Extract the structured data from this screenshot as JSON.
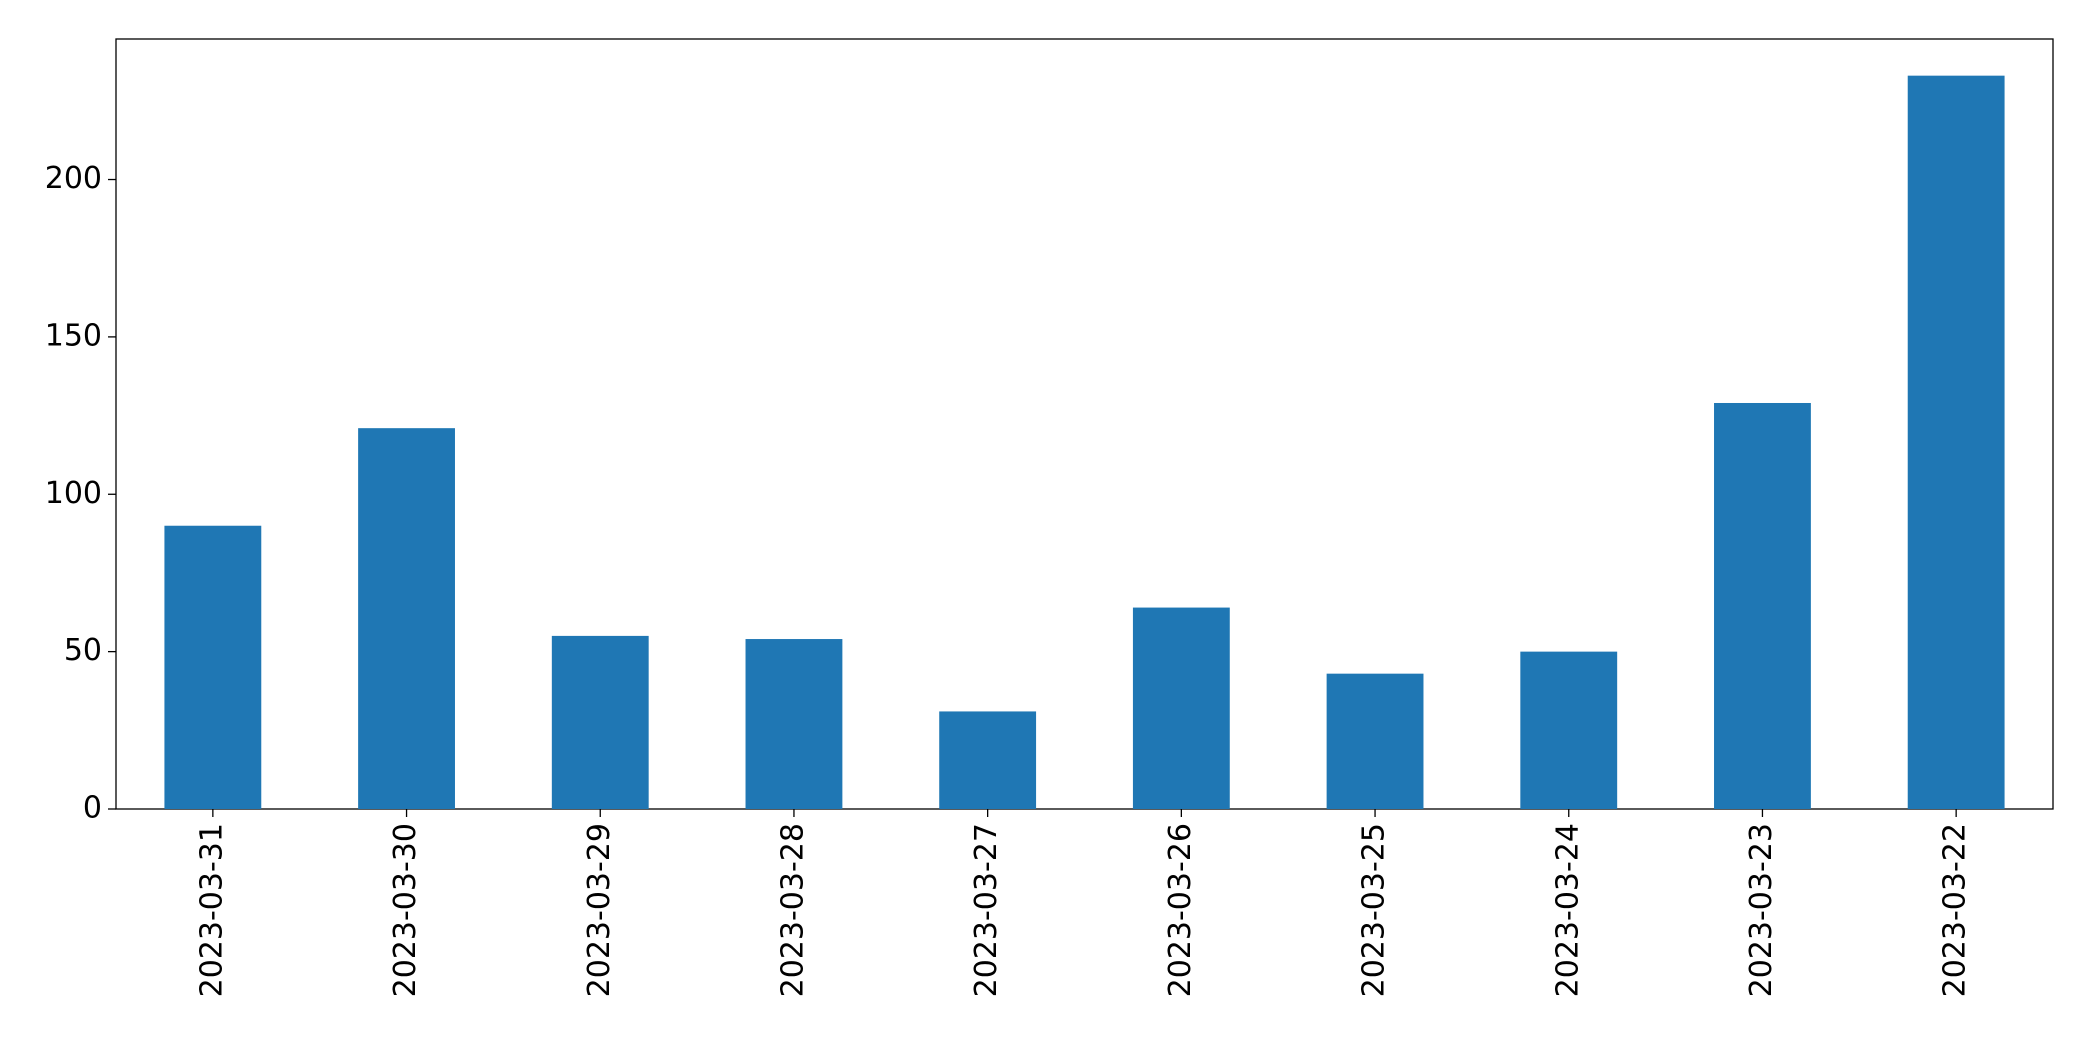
{
  "chart_data": {
    "type": "bar",
    "categories": [
      "2023-03-31",
      "2023-03-30",
      "2023-03-29",
      "2023-03-28",
      "2023-03-27",
      "2023-03-26",
      "2023-03-25",
      "2023-03-24",
      "2023-03-23",
      "2023-03-22"
    ],
    "values": [
      90,
      121,
      55,
      54,
      31,
      64,
      43,
      50,
      129,
      233
    ],
    "color": "#1f77b4",
    "ylim": [
      0,
      244.65
    ],
    "yticks": [
      0,
      50,
      100,
      150,
      200
    ],
    "grid": false
  }
}
